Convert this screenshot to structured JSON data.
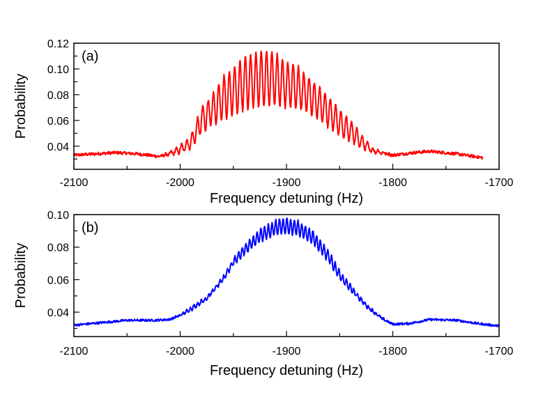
{
  "chart_data": [
    {
      "type": "line",
      "panel_label": "(a)",
      "xlabel": "Frequency detuning (Hz)",
      "ylabel": "Probability",
      "xlim": [
        -2100,
        -1700
      ],
      "ylim": [
        0.022,
        0.12
      ],
      "xticks": [
        "-2100",
        "-2000",
        "-1900",
        "-1800",
        "-1700"
      ],
      "yticks": [
        "0.04",
        "0.06",
        "0.08",
        "0.10",
        "0.12"
      ],
      "color": "#ff0000",
      "oscillation_period_hz": 5,
      "noise": 0.0012,
      "series": {
        "x": [
          -2100,
          -2080,
          -2060,
          -2040,
          -2020,
          -2010,
          -2000,
          -1990,
          -1980,
          -1970,
          -1960,
          -1950,
          -1940,
          -1930,
          -1920,
          -1910,
          -1900,
          -1890,
          -1880,
          -1870,
          -1860,
          -1850,
          -1840,
          -1830,
          -1820,
          -1800,
          -1780,
          -1765,
          -1740,
          -1715
        ],
        "mean": [
          0.033,
          0.034,
          0.035,
          0.034,
          0.032,
          0.034,
          0.0375,
          0.043,
          0.06,
          0.068,
          0.077,
          0.083,
          0.089,
          0.091,
          0.093,
          0.092,
          0.088,
          0.086,
          0.08,
          0.074,
          0.066,
          0.058,
          0.052,
          0.044,
          0.037,
          0.033,
          0.035,
          0.036,
          0.034,
          0.031
        ],
        "oscillation_amplitude": [
          0,
          0,
          0,
          0,
          0,
          0.001,
          0.003,
          0.005,
          0.01,
          0.012,
          0.017,
          0.019,
          0.021,
          0.021,
          0.022,
          0.02,
          0.018,
          0.017,
          0.014,
          0.013,
          0.012,
          0.01,
          0.009,
          0.005,
          0.002,
          0,
          0,
          0,
          0,
          0
        ]
      }
    },
    {
      "type": "line",
      "panel_label": "(b)",
      "xlabel": "Frequency detuning (Hz)",
      "ylabel": "Probability",
      "xlim": [
        -2100,
        -1700
      ],
      "ylim": [
        0.025,
        0.1
      ],
      "xticks": [
        "-2100",
        "-2000",
        "-1900",
        "-1800",
        "-1700"
      ],
      "yticks": [
        "0.04",
        "0.06",
        "0.08",
        "0.10"
      ],
      "color": "#0000ff",
      "oscillation_period_hz": 3.5,
      "noise": 0.0007,
      "series": {
        "x": [
          -2100,
          -2075,
          -2050,
          -2025,
          -2010,
          -2000,
          -1990,
          -1975,
          -1960,
          -1950,
          -1940,
          -1925,
          -1910,
          -1900,
          -1890,
          -1875,
          -1860,
          -1850,
          -1840,
          -1825,
          -1810,
          -1800,
          -1785,
          -1765,
          -1740,
          -1720,
          -1700
        ],
        "mean": [
          0.032,
          0.0335,
          0.035,
          0.035,
          0.0355,
          0.038,
          0.042,
          0.0486,
          0.06,
          0.071,
          0.078,
          0.087,
          0.092,
          0.093,
          0.092,
          0.086,
          0.074,
          0.0626,
          0.055,
          0.044,
          0.036,
          0.0326,
          0.033,
          0.0355,
          0.035,
          0.033,
          0.0315
        ],
        "oscillation_amplitude": [
          0,
          0,
          0,
          0,
          0,
          0.0005,
          0.001,
          0.001,
          0.0015,
          0.002,
          0.003,
          0.004,
          0.0045,
          0.005,
          0.0045,
          0.004,
          0.0035,
          0.003,
          0.002,
          0.001,
          0.0005,
          0,
          0,
          0,
          0,
          0,
          0
        ]
      }
    }
  ]
}
